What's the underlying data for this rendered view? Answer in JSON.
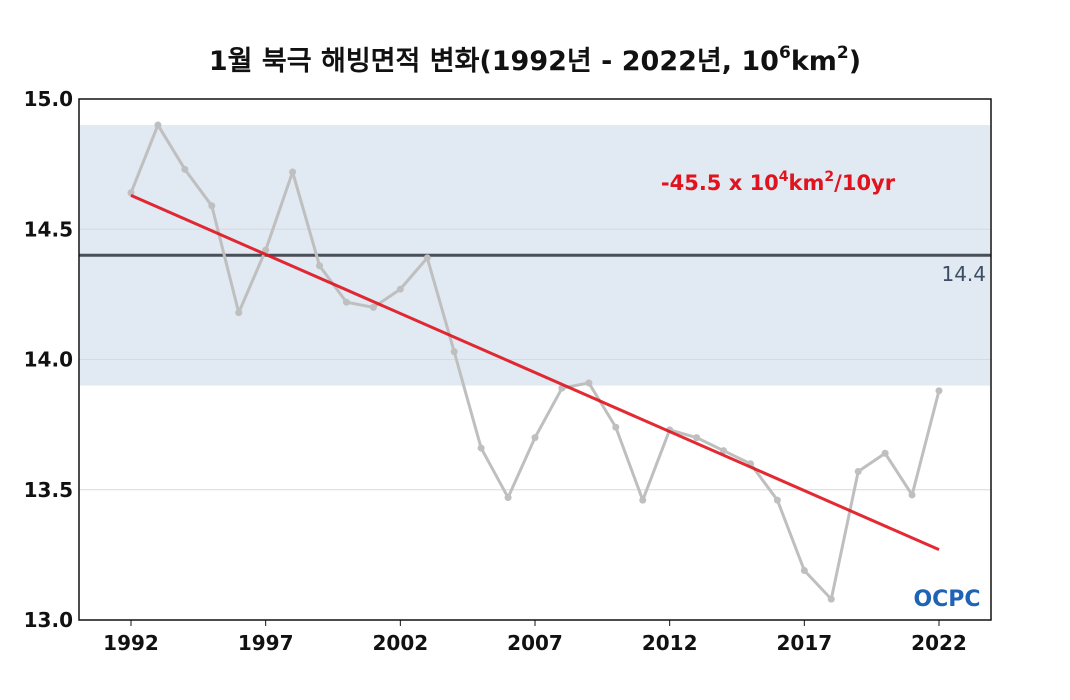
{
  "chart_data": {
    "type": "line",
    "title": "1월 북극 해빙면적 변화(1992년 - 2022년, 10",
    "title_exponent": "6",
    "title_unit": "km",
    "title_unit_exponent": "2",
    "title_close": ")",
    "xlabel": "",
    "ylabel": "",
    "xlim": [
      1992,
      2022
    ],
    "ylim": [
      13.0,
      15.0
    ],
    "x_ticks": [
      "1992",
      "1997",
      "2002",
      "2007",
      "2012",
      "2017",
      "2022"
    ],
    "y_ticks": [
      "13.0",
      "13.5",
      "14.0",
      "14.5",
      "15.0"
    ],
    "grid": true,
    "x": [
      1992,
      1993,
      1994,
      1995,
      1996,
      1997,
      1998,
      1999,
      2000,
      2001,
      2002,
      2003,
      2004,
      2005,
      2006,
      2007,
      2008,
      2009,
      2010,
      2011,
      2012,
      2013,
      2014,
      2015,
      2016,
      2017,
      2018,
      2019,
      2020,
      2021,
      2022
    ],
    "series": [
      {
        "values": [
          14.64,
          14.9,
          14.73,
          14.59,
          14.18,
          14.42,
          14.72,
          14.36,
          14.22,
          14.2,
          14.27,
          14.39,
          14.03,
          13.66,
          13.47,
          13.7,
          13.89,
          13.91,
          13.74,
          13.46,
          13.73,
          13.7,
          13.65,
          13.6,
          13.46,
          13.19,
          13.08,
          13.57,
          13.64,
          13.48,
          13.88
        ],
        "color": "#bfbfbf"
      }
    ],
    "trend": {
      "label": "-45.5 x 10",
      "label_exponent": "4",
      "label_unit": "km",
      "label_unit_exponent": "2",
      "label_suffix": "/10yr",
      "start": [
        1992,
        14.63
      ],
      "end": [
        2022,
        13.27
      ],
      "color": "#e0141e"
    },
    "reference": {
      "value": 14.4,
      "label": "14.4",
      "band": [
        13.9,
        14.9
      ],
      "line_color": "#4a4f57",
      "band_color": "#e1e9f2"
    },
    "logo_text": "OCPC"
  }
}
